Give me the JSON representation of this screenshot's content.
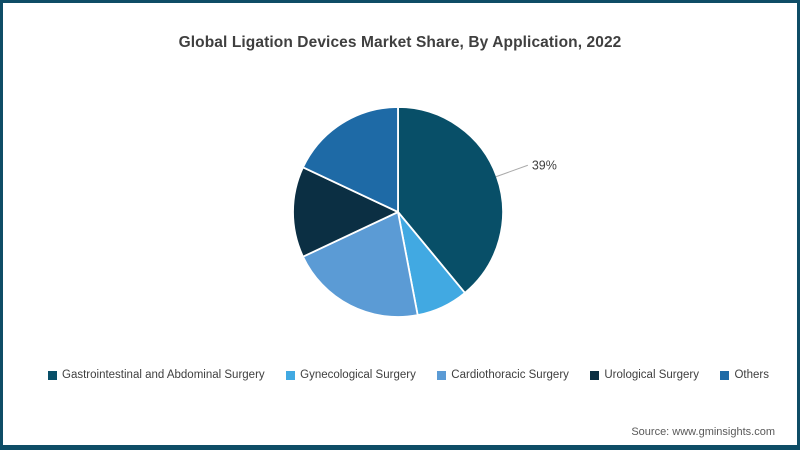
{
  "frame": {
    "border_color": "#0e4d66",
    "background_color": "#ffffff"
  },
  "chart_data": {
    "type": "pie",
    "title": "Global Ligation Devices Market Share, By Application, 2022",
    "unit": "%",
    "start_angle_deg": 0,
    "direction": "clockwise",
    "legend_position": "bottom",
    "slices": [
      {
        "label": "Gastrointestinal and Abdominal Surgery",
        "value": 39,
        "color": "#084f68",
        "data_label": "39%"
      },
      {
        "label": "Gynecological Surgery",
        "value": 8,
        "color": "#41a9e2",
        "data_label": null
      },
      {
        "label": "Cardiothoracic Surgery",
        "value": 21,
        "color": "#5b9bd5",
        "data_label": null
      },
      {
        "label": "Urological Surgery",
        "value": 14,
        "color": "#0b2f43",
        "data_label": null
      },
      {
        "label": "Others",
        "value": 18,
        "color": "#1e6aa6",
        "data_label": null
      }
    ],
    "slice_divider_color": "#ffffff",
    "leader_line_color": "#aaaaaa",
    "data_label_color": "#3f3f3f"
  },
  "source": {
    "text": "Source: www.gminsights.com"
  }
}
